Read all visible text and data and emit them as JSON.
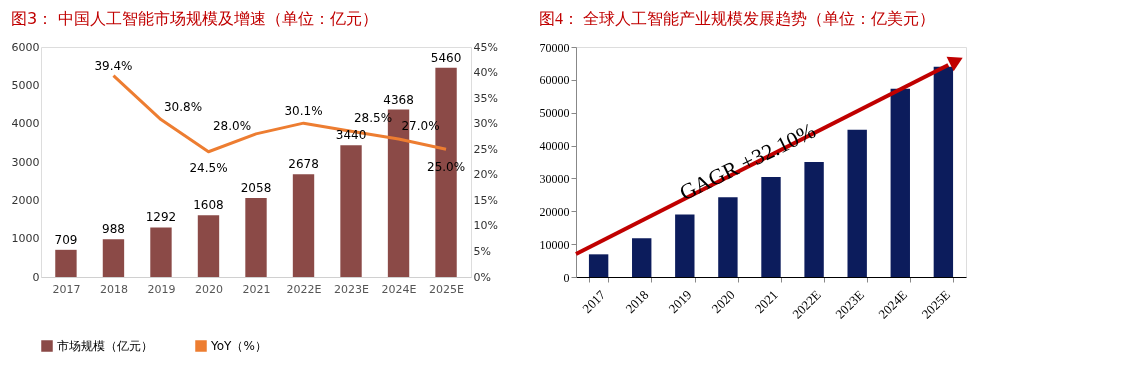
{
  "chart_data": [
    {
      "type": "bar",
      "title": "图3： 中国人工智能市场规模及增速（单位：亿元）",
      "categories": [
        "2017",
        "2018",
        "2019",
        "2020",
        "2021",
        "2022E",
        "2023E",
        "2024E",
        "2025E"
      ],
      "series": [
        {
          "name": "市场规模（亿元）",
          "type": "bar",
          "color": "#8b4a47",
          "values": [
            709,
            988,
            1292,
            1608,
            2058,
            2678,
            3440,
            4368,
            5460
          ],
          "value_labels": [
            "709",
            "988",
            "1292",
            "1608",
            "2058",
            "2678",
            "3440",
            "4368",
            "5460"
          ]
        },
        {
          "name": "YoY（%）",
          "type": "line",
          "axis": "y2",
          "color": "#ed7d31",
          "values": [
            null,
            39.4,
            30.8,
            24.5,
            28.0,
            30.1,
            28.5,
            27.0,
            25.0
          ],
          "value_labels": [
            null,
            "39.4%",
            "30.8%",
            "24.5%",
            "28.0%",
            "30.1%",
            "28.5%",
            "27.0%",
            "25.0%"
          ]
        }
      ],
      "ylim": [
        0,
        6000
      ],
      "yticks": [
        0,
        1000,
        2000,
        3000,
        4000,
        5000,
        6000
      ],
      "y2lim": [
        0,
        45
      ],
      "y2ticks": [
        {
          "value": 0,
          "label": "0%"
        },
        {
          "value": 5,
          "label": "5%"
        },
        {
          "value": 10,
          "label": "10%"
        },
        {
          "value": 15,
          "label": "15%"
        },
        {
          "value": 20,
          "label": "20%"
        },
        {
          "value": 25,
          "label": "25%"
        },
        {
          "value": 30,
          "label": "30%"
        },
        {
          "value": 35,
          "label": "35%"
        },
        {
          "value": 40,
          "label": "40%"
        },
        {
          "value": 45,
          "label": "45%"
        }
      ],
      "legend": "bottom",
      "grid": false
    },
    {
      "type": "bar",
      "title": "图4： 全球人工智能产业规模发展趋势（单位：亿美元）",
      "categories": [
        "2017",
        "2018",
        "2019",
        "2020",
        "2021",
        "2022E",
        "2023E",
        "2024E",
        "2025E"
      ],
      "values": [
        6900,
        11800,
        19000,
        24300,
        30400,
        35000,
        44800,
        57300,
        64000
      ],
      "color": "#0c1c5c",
      "ylim": [
        0,
        70000
      ],
      "yticks": [
        0,
        10000,
        20000,
        30000,
        40000,
        50000,
        60000,
        70000
      ],
      "annotations": [
        "GAGR +32.10%"
      ],
      "grid": false
    }
  ]
}
